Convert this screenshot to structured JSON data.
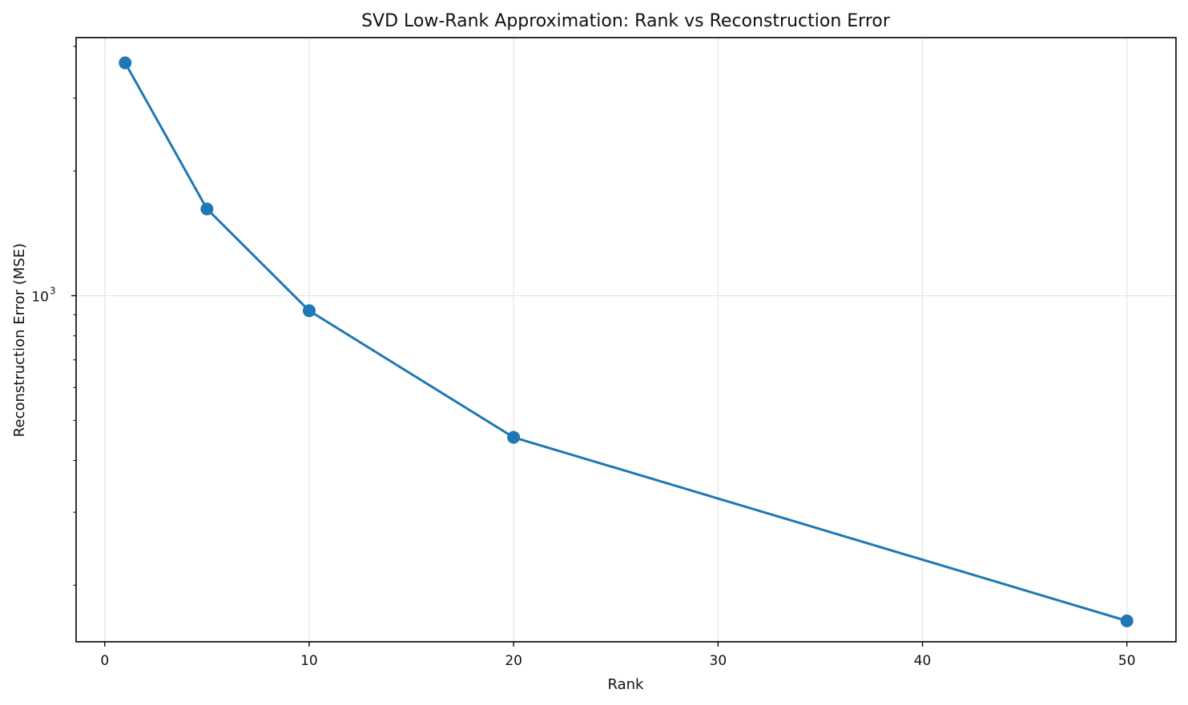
{
  "chart_data": {
    "type": "line",
    "title": "SVD Low-Rank Approximation: Rank vs Reconstruction Error",
    "xlabel": "Rank",
    "ylabel": "Reconstruction Error (MSE)",
    "x": [
      1,
      5,
      10,
      20,
      50
    ],
    "series": [
      {
        "values": [
          3650,
          1620,
          920,
          455,
          164
        ],
        "color": "#1f77b4"
      }
    ],
    "x_ticks": [
      {
        "value": 0,
        "label": "0"
      },
      {
        "value": 10,
        "label": "10"
      },
      {
        "value": 20,
        "label": "20"
      },
      {
        "value": 30,
        "label": "30"
      },
      {
        "value": 40,
        "label": "40"
      },
      {
        "value": 50,
        "label": "50"
      }
    ],
    "y_major_ticks": [
      {
        "value": 1000,
        "base": "10",
        "exp": "3"
      }
    ],
    "y_minor_ticks": [
      200,
      300,
      400,
      500,
      600,
      700,
      800,
      900,
      2000,
      3000,
      4000
    ],
    "xlim": [
      -1.4,
      52.4
    ],
    "ylim": [
      146,
      4200
    ],
    "yscale": "log",
    "grid": true
  }
}
